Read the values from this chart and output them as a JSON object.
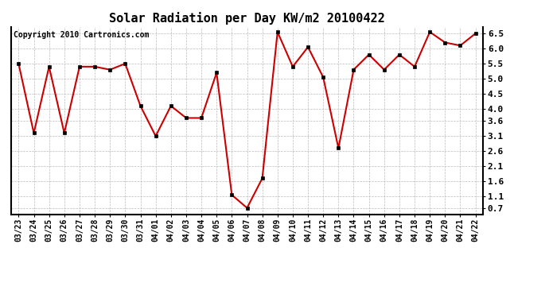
{
  "title": "Solar Radiation per Day KW/m2 20100422",
  "copyright": "Copyright 2010 Cartronics.com",
  "labels": [
    "03/23",
    "03/24",
    "03/25",
    "03/26",
    "03/27",
    "03/28",
    "03/29",
    "03/30",
    "03/31",
    "04/01",
    "04/02",
    "04/03",
    "04/04",
    "04/05",
    "04/06",
    "04/07",
    "04/08",
    "04/09",
    "04/10",
    "04/11",
    "04/12",
    "04/13",
    "04/14",
    "04/15",
    "04/16",
    "04/17",
    "04/18",
    "04/19",
    "04/20",
    "04/21",
    "04/22"
  ],
  "values": [
    5.5,
    3.2,
    5.4,
    3.2,
    5.4,
    5.4,
    5.3,
    5.5,
    4.1,
    3.1,
    4.1,
    3.7,
    3.7,
    5.2,
    1.15,
    0.72,
    1.7,
    6.55,
    5.4,
    6.05,
    5.05,
    2.7,
    5.3,
    5.8,
    5.3,
    5.8,
    5.4,
    6.55,
    6.2,
    6.1,
    6.5
  ],
  "line_color": "#cc0000",
  "marker_color": "#000000",
  "bg_color": "#ffffff",
  "grid_color": "#bbbbbb",
  "yticks": [
    0.7,
    1.1,
    1.6,
    2.1,
    2.6,
    3.1,
    3.6,
    4.0,
    4.5,
    5.0,
    5.5,
    6.0,
    6.5
  ],
  "ylim": [
    0.5,
    6.72
  ],
  "title_fontsize": 11,
  "copyright_fontsize": 7,
  "tick_fontsize": 7
}
